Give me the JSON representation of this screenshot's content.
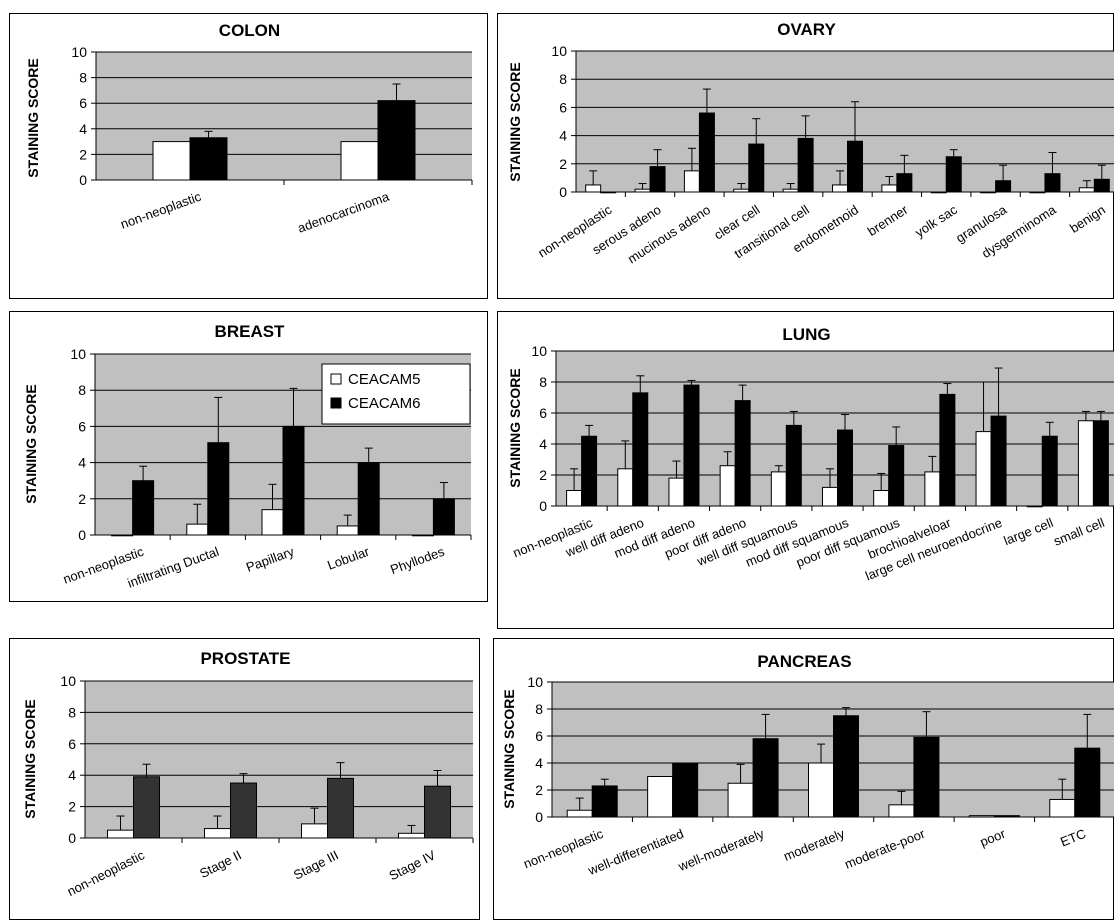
{
  "colors": {
    "ceacam5": "#ffffff",
    "ceacam6": "#000000",
    "ceacam6_prostate": "#333333",
    "plot_bg": "#c0c0c0",
    "grid": "#000000"
  },
  "chart_data": [
    {
      "type": "bar",
      "title": "COLON",
      "ylabel": "STAINING SCORE",
      "ylim": [
        0,
        10
      ],
      "yticks": [
        0,
        2,
        4,
        6,
        8,
        10
      ],
      "grid": true,
      "categories": [
        "non-neoplastic",
        "adenocarcinoma"
      ],
      "series": [
        {
          "values": [
            3.0,
            3.0
          ],
          "errors": [
            0.0,
            0.0
          ]
        },
        {
          "values": [
            3.3,
            6.2
          ],
          "errors": [
            0.5,
            1.3
          ]
        }
      ]
    },
    {
      "type": "bar",
      "title": "OVARY",
      "ylabel": "STAINING SCORE",
      "ylim": [
        0,
        10
      ],
      "yticks": [
        0,
        2,
        4,
        6,
        8,
        10
      ],
      "grid": true,
      "categories": [
        "non-neoplastic",
        "serous adeno",
        "mucinous adeno",
        "clear cell",
        "transitional cell",
        "endometnoid",
        "brenner",
        "yolk sac",
        "granulosa",
        "dysgerminoma",
        "benign"
      ],
      "series": [
        {
          "values": [
            0.5,
            0.2,
            1.5,
            0.2,
            0.2,
            0.5,
            0.5,
            0,
            0,
            0,
            0.3
          ],
          "errors": [
            1.0,
            0.4,
            1.6,
            0.4,
            0.4,
            1.0,
            0.6,
            0,
            0,
            0,
            0.5
          ]
        },
        {
          "values": [
            0,
            1.8,
            5.6,
            3.4,
            3.8,
            3.6,
            1.3,
            2.5,
            0.8,
            1.3,
            0.9
          ],
          "errors": [
            0,
            1.2,
            1.7,
            1.8,
            1.6,
            2.8,
            1.3,
            0.5,
            1.1,
            1.5,
            1.0
          ]
        }
      ]
    },
    {
      "type": "bar",
      "title": "BREAST",
      "ylabel": "STAINING SCORE",
      "ylim": [
        0,
        10
      ],
      "yticks": [
        0,
        2,
        4,
        6,
        8,
        10
      ],
      "grid": true,
      "legend": "top-right",
      "categories": [
        "non-neoplastic",
        "infiltrating Ductal",
        "Papillary",
        "Lobular",
        "Phyllodes"
      ],
      "series": [
        {
          "name": "CEACAM5",
          "values": [
            0,
            0.6,
            1.4,
            0.5,
            0
          ],
          "errors": [
            0,
            1.1,
            1.4,
            0.6,
            0
          ]
        },
        {
          "name": "CEACAM6",
          "values": [
            3.0,
            5.1,
            6.0,
            4.0,
            2.0
          ],
          "errors": [
            0.8,
            2.5,
            2.1,
            0.8,
            0.9
          ]
        }
      ]
    },
    {
      "type": "bar",
      "title": "LUNG",
      "ylabel": "STAINING SCORE",
      "ylim": [
        0,
        10
      ],
      "yticks": [
        0,
        2,
        4,
        6,
        8,
        10
      ],
      "grid": true,
      "categories": [
        "non-neoplastic",
        "well diff adeno",
        "mod diff adeno",
        "poor diff adeno",
        "well diff squamous",
        "mod diff squamous",
        "poor diff squamous",
        "brochioalveloar",
        "large cell neuroendocrine",
        "large cell",
        "small cell"
      ],
      "series": [
        {
          "values": [
            1.0,
            2.4,
            1.8,
            2.6,
            2.2,
            1.2,
            1.0,
            2.2,
            4.8,
            0,
            5.5
          ],
          "errors": [
            1.4,
            1.8,
            1.1,
            0.9,
            0.4,
            1.2,
            1.1,
            1.0,
            3.2,
            0,
            0.6
          ]
        },
        {
          "values": [
            4.5,
            7.3,
            7.8,
            6.8,
            5.2,
            4.9,
            3.9,
            7.2,
            5.8,
            4.5,
            5.5
          ],
          "errors": [
            0.7,
            1.1,
            0.3,
            1.0,
            0.9,
            1.0,
            1.2,
            0.7,
            3.1,
            0.9,
            0.6
          ]
        }
      ]
    },
    {
      "type": "bar",
      "title": "PROSTATE",
      "ylabel": "STAINING SCORE",
      "ylim": [
        0,
        10
      ],
      "yticks": [
        0,
        2,
        4,
        6,
        8,
        10
      ],
      "grid": true,
      "categories": [
        "non-neoplastic",
        "Stage II",
        "Stage III",
        "Stage IV"
      ],
      "series": [
        {
          "values": [
            0.5,
            0.6,
            0.9,
            0.3
          ],
          "errors": [
            0.9,
            0.8,
            1.0,
            0.5
          ]
        },
        {
          "values": [
            3.9,
            3.5,
            3.8,
            3.3
          ],
          "errors": [
            0.8,
            0.6,
            1.0,
            1.0
          ]
        }
      ]
    },
    {
      "type": "bar",
      "title": "PANCREAS",
      "ylabel": "STAINING SCORE",
      "ylim": [
        0,
        10
      ],
      "yticks": [
        0,
        2,
        4,
        6,
        8,
        10
      ],
      "grid": true,
      "categories": [
        "non-neoplastic",
        "well-differentiated",
        "well-moderately",
        "moderately",
        "moderate-poor",
        "poor",
        "ETC"
      ],
      "series": [
        {
          "values": [
            0.5,
            3.0,
            2.5,
            4.0,
            0.9,
            0.1,
            1.3
          ],
          "errors": [
            0.9,
            0,
            1.4,
            1.4,
            1.0,
            0,
            1.5
          ]
        },
        {
          "values": [
            2.3,
            4.0,
            5.8,
            7.5,
            5.9,
            0.1,
            5.1
          ],
          "errors": [
            0.5,
            0,
            1.8,
            0.6,
            1.9,
            0,
            2.5
          ]
        }
      ]
    }
  ]
}
